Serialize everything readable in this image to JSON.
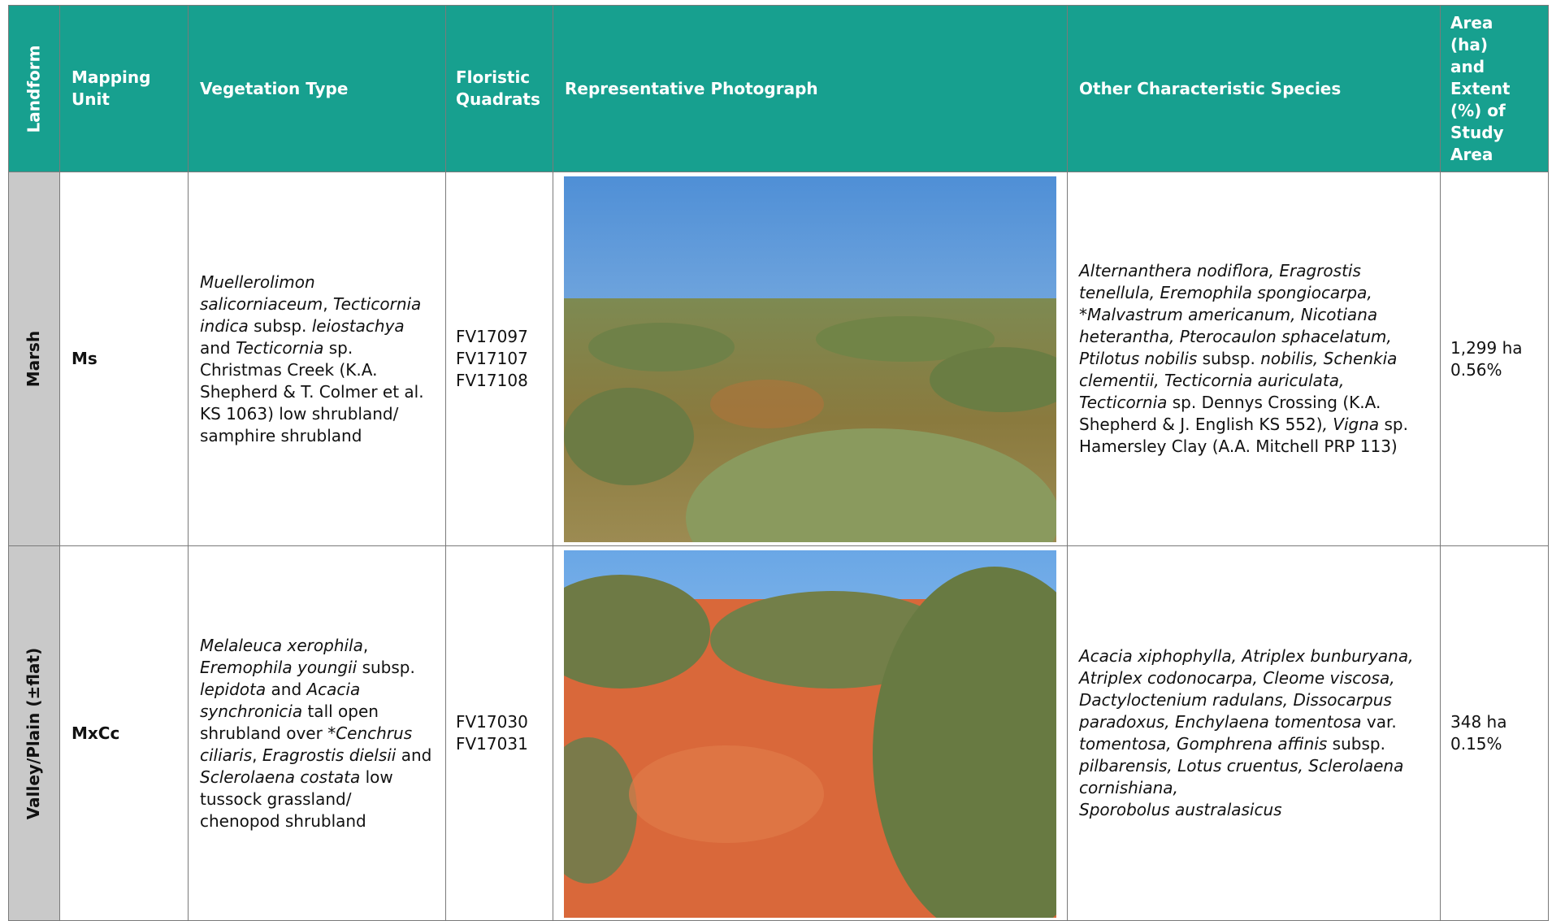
{
  "header": {
    "landform": "Landform",
    "mapping_unit": "Mapping Unit",
    "vegetation_type": "Vegetation Type",
    "floristic_quadrats": "Floristic Quadrats",
    "photograph": "Representative Photograph",
    "other_species": "Other Characteristic Species",
    "area": "Area (ha) and Extent (%) of Study Area"
  },
  "rows": [
    {
      "landform": "Marsh",
      "mapping_unit": "Ms",
      "vegetation_type": [
        {
          "text": "Muellerolimon salicorniaceum",
          "italic": true
        },
        {
          "text": ", ",
          "italic": false
        },
        {
          "text": "Tecticornia indica",
          "italic": true
        },
        {
          "text": " subsp. ",
          "italic": false
        },
        {
          "text": "leiostachya",
          "italic": true
        },
        {
          "text": " and ",
          "italic": false
        },
        {
          "text": "Tecticornia",
          "italic": true
        },
        {
          "text": " sp. Christmas Creek (K.A. Shepherd & T. Colmer et al. KS 1063) low shrubland/ samphire shrubland",
          "italic": false
        }
      ],
      "floristic_quadrats": [
        "FV17097",
        "FV17107",
        "FV17108"
      ],
      "other_species": [
        {
          "text": "Alternanthera nodiflora, Eragrostis tenellula, Eremophila spongiocarpa, *Malvastrum americanum, Nicotiana heterantha, Pterocaulon sphacelatum, Ptilotus nobilis",
          "italic": true
        },
        {
          "text": " subsp. ",
          "italic": false
        },
        {
          "text": "nobilis, Schenkia clementii, Tecticornia auriculata, Tecticornia",
          "italic": true
        },
        {
          "text": " sp. Dennys Crossing (K.A. Shepherd & J. English KS 552)",
          "italic": false
        },
        {
          "text": ", Vigna",
          "italic": true
        },
        {
          "text": " sp. Hamersley Clay (A.A. Mitchell PRP 113)",
          "italic": false
        }
      ],
      "area": [
        "1,299 ha",
        "0.56%"
      ]
    },
    {
      "landform": "Valley/Plain (±flat)",
      "mapping_unit": "MxCc",
      "vegetation_type": [
        {
          "text": "Melaleuca xerophila",
          "italic": true
        },
        {
          "text": ", ",
          "italic": false
        },
        {
          "text": "Eremophila youngii",
          "italic": true
        },
        {
          "text": " subsp. ",
          "italic": false
        },
        {
          "text": "lepidota",
          "italic": true
        },
        {
          "text": " and ",
          "italic": false
        },
        {
          "text": "Acacia synchronicia",
          "italic": true
        },
        {
          "text": " tall open shrubland over *",
          "italic": false
        },
        {
          "text": "Cenchrus ciliaris",
          "italic": true
        },
        {
          "text": ", ",
          "italic": false
        },
        {
          "text": "Eragrostis dielsii",
          "italic": true
        },
        {
          "text": " and ",
          "italic": false
        },
        {
          "text": "Sclerolaena costata",
          "italic": true
        },
        {
          "text": " low tussock grassland/ chenopod shrubland",
          "italic": false
        }
      ],
      "floristic_quadrats": [
        "FV17030",
        "FV17031"
      ],
      "other_species": [
        {
          "text": "Acacia xiphophylla, Atriplex bunburyana, Atriplex codonocarpa, Cleome viscosa, Dactyloctenium radulans, Dissocarpus paradoxus, Enchylaena tomentosa",
          "italic": true
        },
        {
          "text": " var. ",
          "italic": false
        },
        {
          "text": "tomentosa, Gomphrena affinis",
          "italic": true
        },
        {
          "text": " subsp. ",
          "italic": false
        },
        {
          "text": "pilbarensis, Lotus cruentus, Sclerolaena cornishiana,\nSporobolus australasicus",
          "italic": true
        }
      ],
      "area": [
        "348 ha",
        "0.15%"
      ]
    }
  ]
}
